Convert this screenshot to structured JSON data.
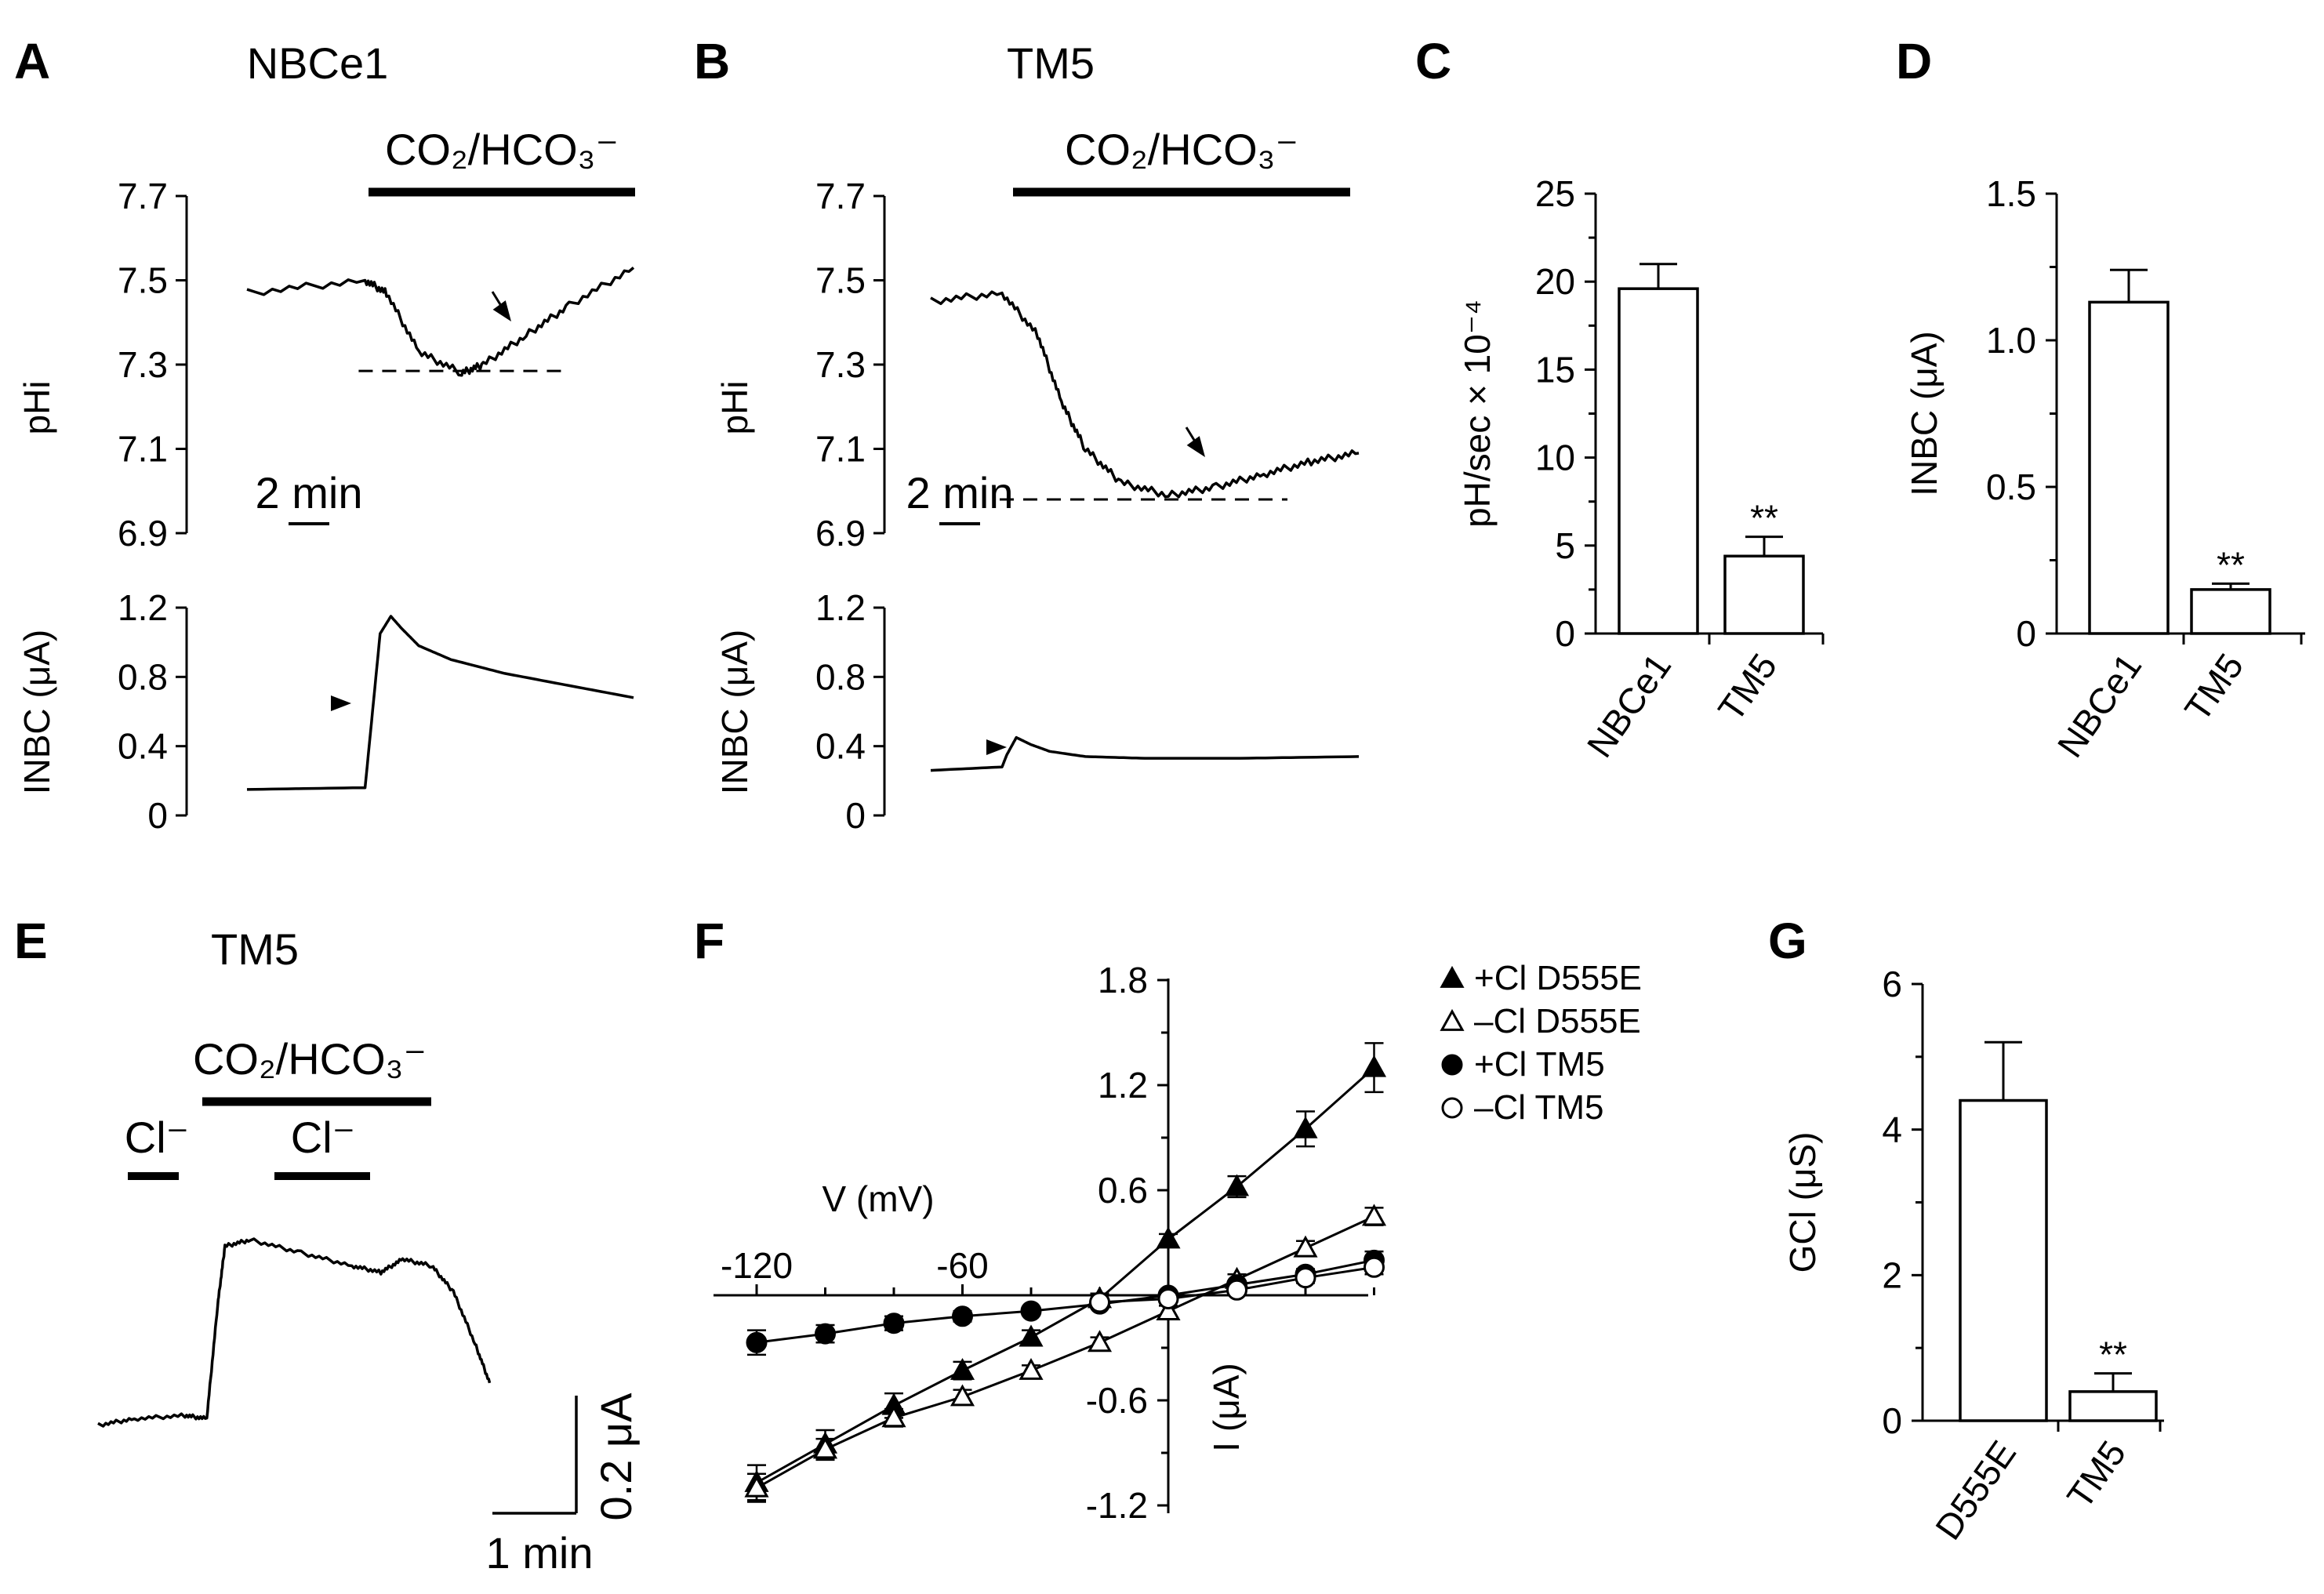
{
  "figure": {
    "panel_letters": [
      "A",
      "B",
      "C",
      "D",
      "E",
      "F",
      "G"
    ]
  },
  "chart_data": [
    {
      "panel": "A",
      "type": "line",
      "title": "NBCe1",
      "bar_label": "CO₂/HCO₃⁻",
      "scalebar": "2 min",
      "top": {
        "ylabel": "pHi",
        "yticks": [
          "7.7",
          "7.5",
          "7.3",
          "7.1",
          "6.9"
        ],
        "ylim": [
          6.9,
          7.7
        ],
        "xlim": [
          0,
          18
        ],
        "x": [
          0,
          5.5,
          6.5,
          8,
          10,
          11,
          13,
          15,
          18
        ],
        "y": [
          7.47,
          7.5,
          7.47,
          7.33,
          7.28,
          7.3,
          7.37,
          7.44,
          7.53
        ],
        "min_level": 7.285,
        "co2_on": 5.5
      },
      "bottom": {
        "ylabel": "INBC (μA)",
        "yticks": [
          "1.2",
          "0.8",
          "0.4",
          "0"
        ],
        "ylim": [
          0,
          1.2
        ],
        "xlim": [
          0,
          18
        ],
        "x": [
          0,
          5.3,
          5.5,
          6.2,
          6.7,
          7.2,
          8,
          9.5,
          12,
          15,
          18
        ],
        "y": [
          0.15,
          0.16,
          0.16,
          1.05,
          1.15,
          1.08,
          0.98,
          0.9,
          0.82,
          0.75,
          0.68
        ]
      }
    },
    {
      "panel": "B",
      "type": "line",
      "title": "TM5",
      "bar_label": "CO₂/HCO₃⁻",
      "scalebar": "2 min",
      "top": {
        "ylabel": "pHi",
        "yticks": [
          "7.7",
          "7.5",
          "7.3",
          "7.1",
          "6.9"
        ],
        "ylim": [
          6.9,
          7.7
        ],
        "xlim": [
          0,
          18
        ],
        "x": [
          0,
          3,
          4.5,
          5.5,
          6.5,
          8,
          10,
          12,
          14,
          16,
          18
        ],
        "y": [
          7.45,
          7.47,
          7.37,
          7.21,
          7.1,
          7.02,
          6.99,
          7.01,
          7.04,
          7.07,
          7.09
        ],
        "min_level": 6.98,
        "co2_on": 3.2
      },
      "bottom": {
        "ylabel": "INBC (μA)",
        "yticks": [
          "1.2",
          "0.8",
          "0.4",
          "0"
        ],
        "ylim": [
          0,
          1.2
        ],
        "xlim": [
          0,
          18
        ],
        "x": [
          0,
          3,
          3.2,
          3.6,
          4.2,
          5,
          6.5,
          9,
          13,
          18
        ],
        "y": [
          0.26,
          0.28,
          0.35,
          0.45,
          0.41,
          0.37,
          0.34,
          0.33,
          0.33,
          0.34
        ]
      }
    },
    {
      "panel": "C",
      "type": "bar",
      "categories": [
        "NBCe1",
        "TM5"
      ],
      "values": [
        19.6,
        4.4
      ],
      "errors": [
        1.4,
        1.1
      ],
      "significance": [
        "",
        "**"
      ],
      "ylabel": "pH/sec × 10⁻⁴",
      "yticks": [
        "0",
        "5",
        "10",
        "15",
        "20",
        "25"
      ],
      "ylim": [
        0,
        25
      ]
    },
    {
      "panel": "D",
      "type": "bar",
      "categories": [
        "NBCe1",
        "TM5"
      ],
      "values": [
        1.13,
        0.15
      ],
      "errors": [
        0.11,
        0.02
      ],
      "significance": [
        "",
        "**"
      ],
      "ylabel": "INBC (μA)",
      "yticks": [
        "0",
        "0.5",
        "1.0",
        "1.5"
      ],
      "ylim": [
        0,
        1.5
      ]
    },
    {
      "panel": "E",
      "type": "line",
      "title": "TM5",
      "bar_label": "CO₂/HCO₃⁻",
      "cl_label": "Cl⁻",
      "scalebar_y": "0.2 μA",
      "scalebar_x": "1 min",
      "xlim": [
        0,
        6
      ],
      "ylim": [
        0,
        0.5
      ],
      "x": [
        0,
        0.5,
        1.2,
        1.5,
        1.65,
        1.75,
        2.1,
        2.8,
        3.5,
        3.9,
        4.2,
        4.6,
        4.9,
        5.2,
        5.4
      ],
      "y": [
        0.075,
        0.085,
        0.09,
        0.085,
        0.26,
        0.35,
        0.36,
        0.34,
        0.32,
        0.31,
        0.33,
        0.32,
        0.28,
        0.2,
        0.14
      ]
    },
    {
      "panel": "F",
      "type": "scatter",
      "xlabel": "V (mV)",
      "ylabel": "I (μA)",
      "xticks": [
        "-120",
        "-60"
      ],
      "yticks": [
        "1.8",
        "1.2",
        "0.6",
        "-0.6",
        "-1.2"
      ],
      "xlim": [
        -130,
        60
      ],
      "ylim": [
        -1.2,
        1.8
      ],
      "x": [
        -120,
        -100,
        -80,
        -60,
        -40,
        -20,
        0,
        20,
        40,
        60
      ],
      "series": [
        {
          "name": "+Cl D555E",
          "values": [
            -1.07,
            -0.85,
            -0.63,
            -0.43,
            -0.24,
            -0.02,
            0.32,
            0.62,
            0.95,
            1.3
          ],
          "errors": [
            0.1,
            0.08,
            0.07,
            0.05,
            0.04,
            0.03,
            0.03,
            0.06,
            0.1,
            0.14
          ]
        },
        {
          "name": "–Cl D555E",
          "values": [
            -1.1,
            -0.88,
            -0.7,
            -0.58,
            -0.43,
            -0.27,
            -0.09,
            0.09,
            0.27,
            0.45
          ],
          "errors": [
            0.08,
            0.06,
            0.05,
            0.04,
            0.03,
            0.03,
            0.03,
            0.03,
            0.04,
            0.05
          ]
        },
        {
          "name": "+Cl TM5",
          "values": [
            -0.27,
            -0.22,
            -0.16,
            -0.12,
            -0.09,
            -0.05,
            0.0,
            0.06,
            0.12,
            0.2
          ],
          "errors": [
            0.07,
            0.05,
            0.04,
            0.03,
            0.02,
            0.02,
            0.02,
            0.02,
            0.03,
            0.05
          ]
        },
        {
          "name": "–Cl TM5",
          "values": [
            null,
            null,
            null,
            null,
            null,
            -0.04,
            -0.02,
            0.03,
            0.1,
            0.16
          ],
          "errors": [
            0,
            0,
            0,
            0,
            0,
            0.02,
            0.02,
            0.02,
            0.03,
            0.04
          ]
        }
      ]
    },
    {
      "panel": "G",
      "type": "bar",
      "categories": [
        "D555E",
        "TM5"
      ],
      "values": [
        4.4,
        0.4
      ],
      "errors": [
        0.8,
        0.25
      ],
      "significance": [
        "",
        "**"
      ],
      "ylabel": "GCl (μS)",
      "yticks": [
        "0",
        "2",
        "4",
        "6"
      ],
      "ylim": [
        0,
        6
      ]
    }
  ]
}
